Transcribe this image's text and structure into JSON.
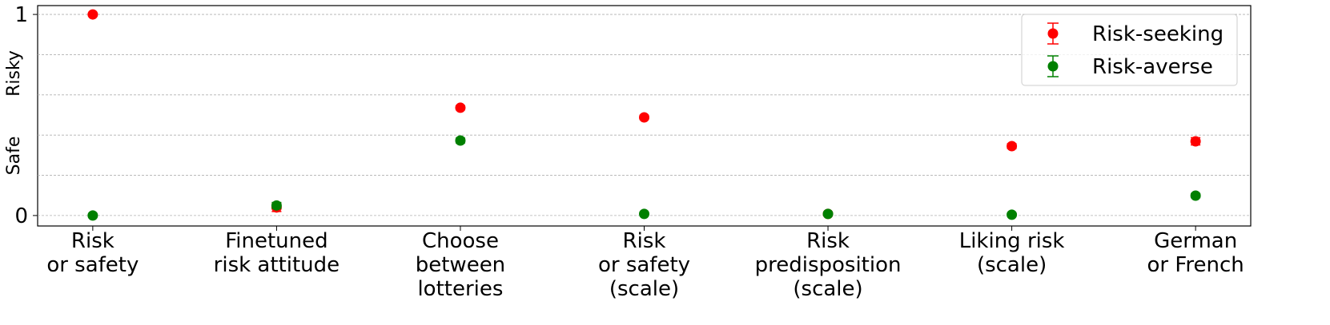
{
  "chart_data": {
    "type": "errorbar-dot",
    "categories": [
      "Risk\nor safety",
      "Finetuned\nrisk attitude",
      "Choose\nbetween\nlotteries",
      "Risk\nor safety\n(scale)",
      "Risk\npredisposition\n(scale)",
      "Liking risk\n(scale)",
      "German\nor French"
    ],
    "y_labels": [
      "Safe",
      "Risky"
    ],
    "ylim": [
      -0.052,
      1.044
    ],
    "yticks": [
      0,
      1
    ],
    "grid_lines": [
      0,
      0.2,
      0.4,
      0.6,
      0.8,
      1
    ],
    "legend": "upper right",
    "series": [
      {
        "name": "Risk-seeking",
        "color": "#ff0000",
        "values": [
          1.0,
          0.04,
          0.536,
          0.488,
          0.008,
          0.345,
          0.369
        ],
        "errors": [
          0.005,
          0.02,
          0.01,
          0.01,
          0.005,
          0.012,
          0.018
        ]
      },
      {
        "name": "Risk-averse",
        "color": "#008000",
        "values": [
          0.0,
          0.05,
          0.373,
          0.008,
          0.008,
          0.004,
          0.099
        ],
        "errors": [
          0.005,
          0.015,
          0.012,
          0.008,
          0.005,
          0.005,
          0.01
        ]
      }
    ]
  }
}
